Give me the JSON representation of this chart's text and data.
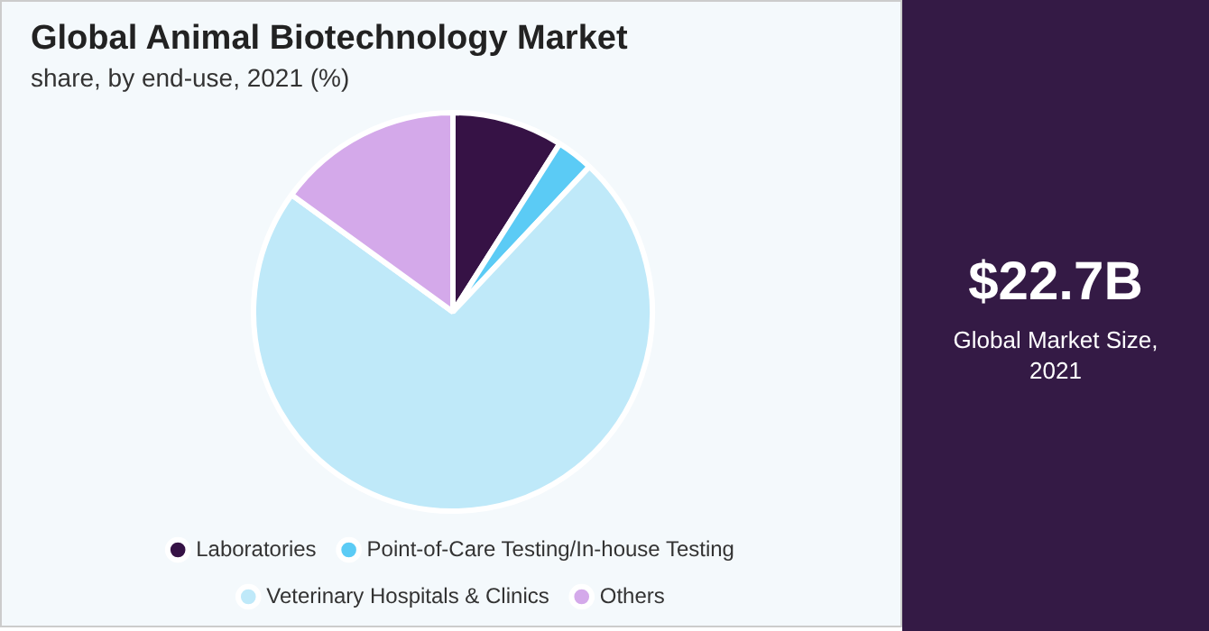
{
  "chart_data": {
    "type": "pie",
    "title": "Global Animal Biotechnology Market",
    "subtitle": "share, by end-use, 2021 (%)",
    "categories": [
      "Laboratories",
      "Point-of-Care Testing/In-house Testing",
      "Veterinary Hospitals & Clinics",
      "Others"
    ],
    "values": [
      9,
      3,
      73,
      15
    ],
    "colors": [
      "#361245",
      "#5bcbf5",
      "#bfe9f9",
      "#d4a9ea"
    ],
    "legend": "bottom",
    "annotations": [
      "$22.7B",
      "Global Market Size, 2021"
    ]
  }
}
